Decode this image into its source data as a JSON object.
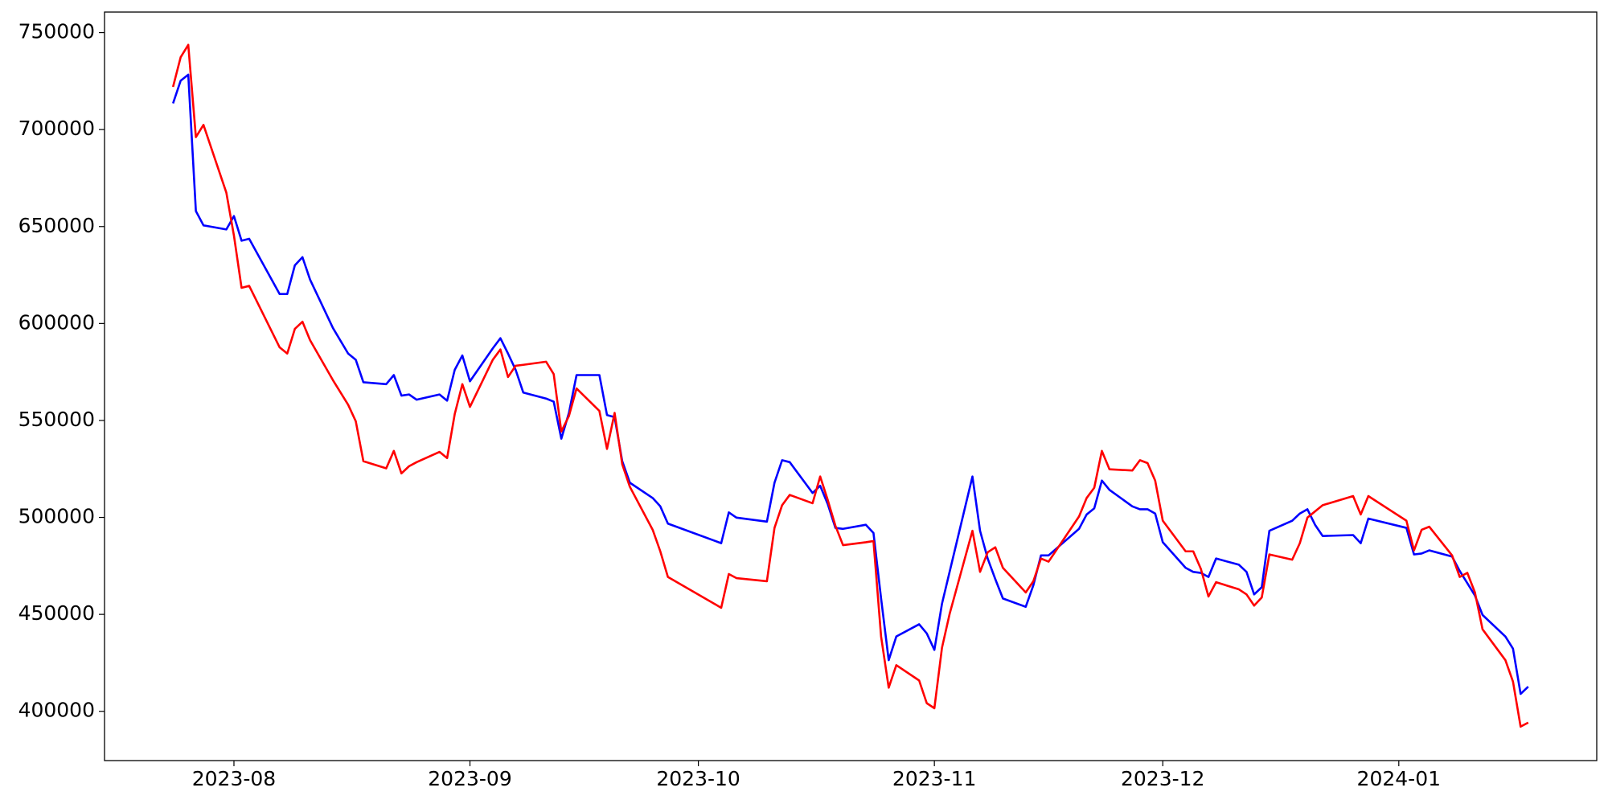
{
  "chart_data": {
    "type": "line",
    "x": [
      -8,
      -7,
      -6,
      -5,
      -4,
      -1,
      0,
      1,
      2,
      6,
      7,
      8,
      9,
      10,
      13,
      15,
      16,
      17,
      20,
      21,
      22,
      23,
      24,
      27,
      28,
      29,
      30,
      31,
      34,
      35,
      36,
      37,
      38,
      41,
      42,
      43,
      44,
      45,
      48,
      49,
      50,
      51,
      52,
      55,
      56,
      57,
      64,
      65,
      66,
      70,
      71,
      72,
      73,
      76,
      77,
      78,
      79,
      80,
      83,
      84,
      85,
      86,
      87,
      90,
      91,
      92,
      93,
      94,
      97,
      98,
      99,
      100,
      101,
      104,
      105,
      106,
      107,
      111,
      112,
      113,
      114,
      115,
      118,
      119,
      120,
      121,
      122,
      125,
      126,
      127,
      128,
      129,
      132,
      133,
      134,
      135,
      136,
      139,
      140,
      141,
      142,
      143,
      147,
      148,
      149,
      154,
      155,
      156,
      157,
      160,
      161,
      162,
      163,
      164,
      167,
      168,
      169,
      170
    ],
    "series": [
      {
        "color": "#0000ff",
        "values": [
          713500,
          725200,
          728300,
          658000,
          650600,
          648500,
          655400,
          642700,
          643700,
          615200,
          615200,
          630000,
          634200,
          622600,
          597700,
          584500,
          581300,
          569700,
          568700,
          573400,
          562800,
          563400,
          560700,
          563400,
          560200,
          576100,
          583500,
          570200,
          587200,
          592400,
          584500,
          576100,
          564400,
          561300,
          559700,
          540600,
          553900,
          573400,
          573400,
          552800,
          551700,
          529000,
          517900,
          510000,
          505700,
          496800,
          486700,
          502600,
          499900,
          497800,
          517900,
          529500,
          528500,
          512600,
          516300,
          506800,
          494600,
          494100,
          496200,
          492000,
          458200,
          426400,
          438600,
          444900,
          440200,
          431700,
          455500,
          471900,
          521100,
          493100,
          478800,
          468200,
          458200,
          453900,
          465000,
          480400,
          480400,
          494100,
          501500,
          504700,
          519000,
          514200,
          505700,
          504200,
          504200,
          502000,
          487200,
          474000,
          471900,
          471400,
          469300,
          478800,
          475600,
          471900,
          460300,
          464000,
          493100,
          498300,
          502000,
          504200,
          496200,
          490400,
          490900,
          486700,
          499400,
          494600,
          480900,
          481400,
          483000,
          479800,
          472400,
          466100,
          459700,
          449700,
          438600,
          432300,
          409000,
          412700
        ]
      },
      {
        "color": "#ff0000",
        "values": [
          722000,
          737300,
          743700,
          696100,
          702400,
          667500,
          645300,
          618400,
          619400,
          587700,
          584500,
          597200,
          600900,
          591400,
          570800,
          558100,
          549600,
          529000,
          525300,
          534300,
          522700,
          526400,
          528500,
          533800,
          530600,
          553300,
          568700,
          557000,
          581300,
          586600,
          572400,
          578200,
          578700,
          580300,
          573900,
          544300,
          552300,
          566500,
          554900,
          535300,
          553900,
          527400,
          515800,
          493600,
          482500,
          469300,
          453400,
          470800,
          468700,
          467100,
          494600,
          506300,
          511600,
          507300,
          521100,
          508900,
          495700,
          485700,
          487200,
          487800,
          438600,
          412200,
          423800,
          415900,
          404200,
          401600,
          432800,
          450200,
          493100,
          471900,
          482000,
          484600,
          474000,
          461300,
          467100,
          478800,
          477200,
          500500,
          510000,
          515300,
          534300,
          524800,
          524200,
          529500,
          528000,
          519000,
          498300,
          482500,
          482500,
          473500,
          459200,
          466600,
          462900,
          460300,
          454500,
          458700,
          480900,
          478200,
          486700,
          499900,
          503100,
          506300,
          511000,
          501500,
          511000,
          498300,
          483000,
          493600,
          495200,
          480400,
          469300,
          471400,
          461300,
          442300,
          426400,
          415300,
          392100,
          394200
        ]
      }
    ],
    "xlim": [
      -17,
      179
    ],
    "xticks": [
      {
        "value": 0,
        "label": "2023-08"
      },
      {
        "value": 31,
        "label": "2023-09"
      },
      {
        "value": 61,
        "label": "2023-10"
      },
      {
        "value": 92,
        "label": "2023-11"
      },
      {
        "value": 122,
        "label": "2023-12"
      },
      {
        "value": 153,
        "label": "2024-01"
      }
    ],
    "ylim": [
      374600,
      760600
    ],
    "yticks": [
      400000,
      450000,
      500000,
      550000,
      600000,
      650000,
      700000,
      750000
    ],
    "grid": false
  }
}
